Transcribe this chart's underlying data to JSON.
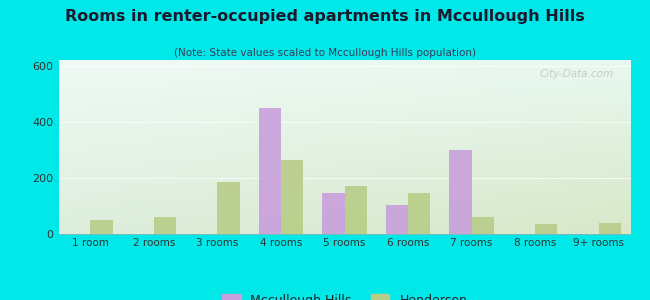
{
  "title": "Rooms in renter-occupied apartments in Mccullough Hills",
  "subtitle": "(Note: State values scaled to Mccullough Hills population)",
  "categories": [
    "1 room",
    "2 rooms",
    "3 rooms",
    "4 rooms",
    "5 rooms",
    "6 rooms",
    "7 rooms",
    "8 rooms",
    "9+ rooms"
  ],
  "mccullough_hills": [
    0,
    0,
    0,
    450,
    145,
    105,
    300,
    0,
    0
  ],
  "henderson": [
    50,
    60,
    185,
    265,
    170,
    145,
    60,
    35,
    40
  ],
  "mccullough_color": "#c9a0dc",
  "henderson_color": "#b8cc88",
  "ylim": [
    0,
    620
  ],
  "yticks": [
    0,
    200,
    400,
    600
  ],
  "background_outer": "#00e8e8",
  "bar_width": 0.35,
  "watermark": "City-Data.com"
}
